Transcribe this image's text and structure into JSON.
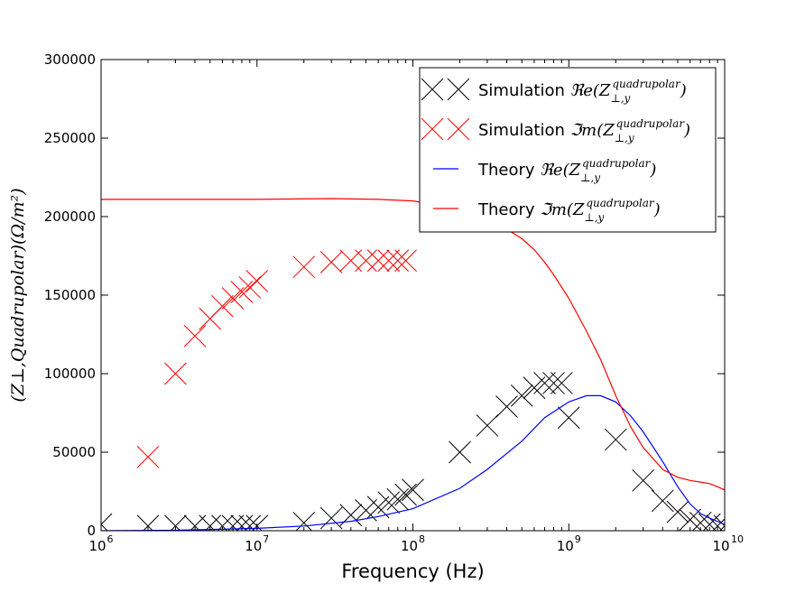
{
  "chart_data": {
    "type": "line",
    "xlabel": "Frequency (Hz)",
    "ylabel": "(Z⊥,Quadrupolar)(Ω/m²)",
    "x_scale": "log",
    "xlim": [
      1000000,
      10000000000
    ],
    "ylim": [
      0,
      300000
    ],
    "x_ticks": [
      {
        "label": "10",
        "exp": "6"
      },
      {
        "label": "10",
        "exp": "7"
      },
      {
        "label": "10",
        "exp": "8"
      },
      {
        "label": "10",
        "exp": "9"
      },
      {
        "label": "10",
        "exp": "10"
      }
    ],
    "y_ticks": [
      "0",
      "50000",
      "100000",
      "150000",
      "200000",
      "250000",
      "300000"
    ],
    "legend_position": "top-right",
    "grid": false,
    "series": [
      {
        "name": "Simulation ℜe(Z⊥,y quadrupolar)",
        "legend_prefix": "Simulation",
        "legend_math": "ℜe(Z",
        "style": "markers",
        "marker": "x",
        "color": "#000000",
        "x": [
          1000000,
          2000000,
          3000000,
          4000000,
          5000000,
          6000000,
          7000000,
          8000000,
          9000000,
          10000000,
          20000000,
          30000000,
          40000000,
          50000000,
          60000000,
          70000000,
          80000000,
          90000000,
          100000000,
          200000000,
          300000000,
          400000000,
          500000000,
          600000000,
          700000000,
          800000000,
          900000000,
          1000000000,
          2000000000,
          3000000000,
          4000000000,
          5000000000,
          6000000000,
          7000000000,
          8000000000,
          9000000000,
          10000000000
        ],
        "y": [
          4000,
          3000,
          3000,
          3000,
          3000,
          3000,
          3000,
          3000,
          3000,
          3000,
          5000,
          8000,
          10000,
          13000,
          15000,
          18000,
          20000,
          23000,
          26000,
          50000,
          67000,
          79000,
          86000,
          91000,
          94000,
          94000,
          94000,
          72000,
          58000,
          32000,
          19000,
          12000,
          7000,
          5000,
          4000,
          3000,
          3000
        ]
      },
      {
        "name": "Simulation ℑm(Z⊥,y quadrupolar)",
        "legend_prefix": "Simulation",
        "legend_math": "ℑm(Z",
        "style": "markers",
        "marker": "x",
        "color": "#ff0000",
        "x": [
          2000000,
          3000000,
          4000000,
          5000000,
          6000000,
          7000000,
          8000000,
          9000000,
          10000000,
          20000000,
          30000000,
          40000000,
          50000000,
          60000000,
          70000000,
          80000000,
          90000000
        ],
        "y": [
          47000,
          100000,
          124000,
          135000,
          143000,
          148000,
          152000,
          155000,
          159000,
          168000,
          171000,
          172000,
          172000,
          172000,
          172000,
          172000,
          172000
        ]
      },
      {
        "name": "Theory ℜe(Z⊥,y quadrupolar)",
        "legend_prefix": "Theory",
        "legend_math": "ℜe(Z",
        "style": "line",
        "color": "#0000ff",
        "x": [
          1000000,
          3000000,
          10000000,
          20000000,
          40000000,
          60000000,
          100000000,
          200000000,
          300000000,
          500000000,
          700000000,
          1000000000,
          1300000000,
          1600000000,
          2000000000,
          2500000000,
          3000000000,
          4000000000,
          5000000000,
          6000000000,
          7000000000,
          8000000000,
          10000000000
        ],
        "y": [
          0,
          300,
          1500,
          3000,
          6000,
          9000,
          14000,
          27000,
          39000,
          57000,
          72000,
          82000,
          86000,
          86000,
          82000,
          73000,
          63000,
          44000,
          28000,
          17000,
          11000,
          8000,
          4000
        ]
      },
      {
        "name": "Theory ℑm(Z⊥,y quadrupolar)",
        "legend_prefix": "Theory",
        "legend_math": "ℑm(Z",
        "style": "line",
        "color": "#ff0000",
        "x": [
          1000000,
          10000000,
          30000000,
          60000000,
          100000000,
          200000000,
          300000000,
          400000000,
          500000000,
          600000000,
          700000000,
          800000000,
          1000000000,
          1300000000,
          1600000000,
          2000000000,
          2500000000,
          3000000000,
          4000000000,
          5000000000,
          6000000000,
          7000000000,
          8000000000,
          9000000000,
          10000000000
        ],
        "y": [
          211000,
          211000,
          211500,
          211000,
          210000,
          205000,
          199000,
          192000,
          186000,
          179000,
          171000,
          163000,
          148000,
          127000,
          109000,
          86000,
          66000,
          53000,
          39000,
          34000,
          32000,
          31000,
          30000,
          28000,
          26000
        ]
      }
    ],
    "legend_sub": "⊥,y",
    "legend_sup": "quadrupolar",
    "legend_close": ")"
  }
}
